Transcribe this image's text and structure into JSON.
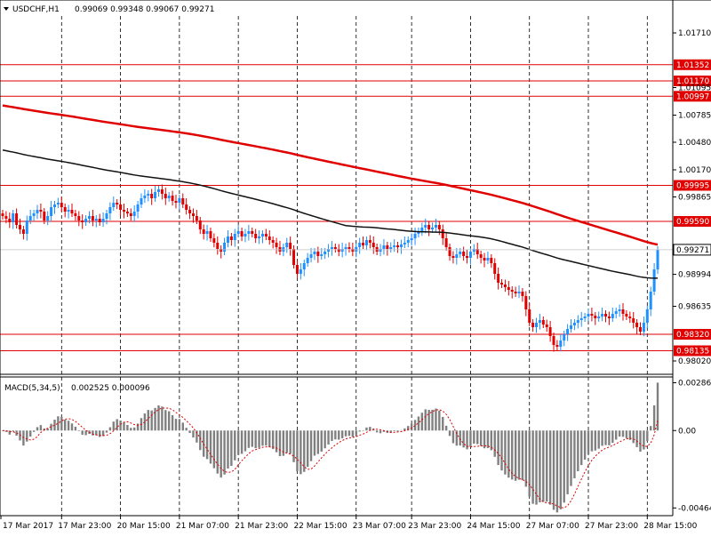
{
  "header": {
    "symbol": "USDCHF,H1",
    "ohlc": "0.99069 0.99348 0.99067 0.99271"
  },
  "chart_data": [
    {
      "type": "candlestick",
      "symbol": "USDCHF",
      "timeframe": "H1",
      "ylim": [
        0.979,
        1.019
      ],
      "y_ticks": [
        "1.01710",
        "1.01095",
        "1.00785",
        "1.00480",
        "1.00170",
        "0.99865",
        "0.98994",
        "0.98635",
        "0.98020"
      ],
      "current_price": "0.99271",
      "horizontal_levels": [
        "1.01352",
        "1.01170",
        "1.00997",
        "0.99995",
        "0.99590",
        "0.98320",
        "0.98135"
      ],
      "level_color": "#e00000",
      "x_tick_labels": [
        "17 Mar 2017",
        "17 Mar 23:00",
        "20 Mar 15:00",
        "21 Mar 07:00",
        "21 Mar 23:00",
        "22 Mar 15:00",
        "23 Mar 07:00",
        "23 Mar 23:00",
        "24 Mar 15:00",
        "27 Mar 07:00",
        "27 Mar 23:00",
        "28 Mar 15:00"
      ],
      "bull_color": "#1e90ff",
      "bear_color": "#e00000",
      "closes": [
        0.9965,
        0.9962,
        0.9958,
        0.9968,
        0.9955,
        0.995,
        0.9945,
        0.996,
        0.9965,
        0.9968,
        0.9972,
        0.997,
        0.996,
        0.9965,
        0.9975,
        0.9978,
        0.998,
        0.9975,
        0.997,
        0.9972,
        0.9968,
        0.9965,
        0.996,
        0.9958,
        0.9962,
        0.9965,
        0.996,
        0.9962,
        0.9958,
        0.9962,
        0.9968,
        0.9975,
        0.998,
        0.9978,
        0.9972,
        0.997,
        0.9968,
        0.9965,
        0.997,
        0.9978,
        0.9985,
        0.9988,
        0.999,
        0.9985,
        0.9992,
        0.9995,
        0.999,
        0.9985,
        0.9988,
        0.9982,
        0.998,
        0.9985,
        0.9978,
        0.9972,
        0.9968,
        0.9965,
        0.996,
        0.995,
        0.9945,
        0.9948,
        0.994,
        0.9935,
        0.9928,
        0.9925,
        0.9935,
        0.9942,
        0.9938,
        0.9945,
        0.9948,
        0.9942,
        0.9945,
        0.9948,
        0.9945,
        0.994,
        0.9942,
        0.9945,
        0.9942,
        0.9938,
        0.9935,
        0.993,
        0.9925,
        0.993,
        0.9935,
        0.9928,
        0.991,
        0.99,
        0.9905,
        0.9912,
        0.9918,
        0.9922,
        0.9925,
        0.992,
        0.9922,
        0.9925,
        0.9928,
        0.993,
        0.9928,
        0.9925,
        0.9928,
        0.993,
        0.9928,
        0.9925,
        0.993,
        0.9935,
        0.9932,
        0.9938,
        0.9935,
        0.993,
        0.9925,
        0.9928,
        0.9932,
        0.9928,
        0.993,
        0.9932,
        0.993,
        0.9933,
        0.9935,
        0.9938,
        0.994,
        0.9945,
        0.9948,
        0.9952,
        0.9955,
        0.995,
        0.9952,
        0.9955,
        0.995,
        0.994,
        0.993,
        0.992,
        0.9918,
        0.9922,
        0.9925,
        0.992,
        0.9918,
        0.9925,
        0.9928,
        0.9922,
        0.9918,
        0.9915,
        0.9918,
        0.9912,
        0.99,
        0.989,
        0.9888,
        0.9885,
        0.9882,
        0.988,
        0.9878,
        0.988,
        0.9875,
        0.986,
        0.9845,
        0.984,
        0.9845,
        0.9848,
        0.9843,
        0.984,
        0.983,
        0.982,
        0.9818,
        0.9825,
        0.9832,
        0.9838,
        0.9842,
        0.9845,
        0.9848,
        0.985,
        0.9852,
        0.9855,
        0.9853,
        0.985,
        0.9852,
        0.9855,
        0.9852,
        0.985,
        0.9855,
        0.9858,
        0.986,
        0.9855,
        0.9852,
        0.985,
        0.9845,
        0.984,
        0.9835,
        0.9845,
        0.986,
        0.988,
        0.9905,
        0.9927
      ]
    },
    {
      "type": "macd",
      "title": "MACD(5,34,5)",
      "values_text": "0.002525 0.000096",
      "ylim": [
        -0.005,
        0.003
      ],
      "y_ticks": [
        "0.002867",
        "0.00",
        "-0.004644"
      ],
      "histogram_color": "#808080",
      "signal_color": "#e00000"
    }
  ]
}
